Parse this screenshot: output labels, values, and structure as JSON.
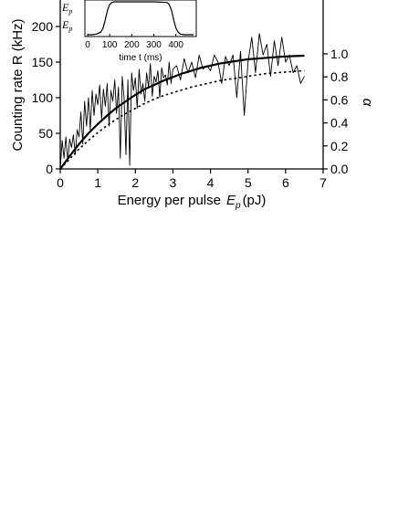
{
  "chart_data": [
    {
      "type": "line",
      "xlabel": "Energy per pulse",
      "xlabel_symbol": "E",
      "xlabel_subscript": "p",
      "xlabel_unit": "(pJ)",
      "ylabel_left": "Counting rate R (kHz)",
      "ylabel_right": "α",
      "xlim": [
        0,
        7
      ],
      "ylim_left": [
        0,
        260
      ],
      "ylim_right": [
        0,
        1.65
      ],
      "x_ticks": [
        0,
        1,
        2,
        3,
        4,
        5,
        6,
        7
      ],
      "y_left_ticks": [
        0,
        50,
        100,
        150,
        200
      ],
      "y_right_ticks": [
        "0.0",
        "0.2",
        "0.4",
        "0.6",
        "0.8",
        "1.0"
      ],
      "series": [
        {
          "style": "thin-solid",
          "axis": "left",
          "x": [
            0.0,
            0.05,
            0.1,
            0.15,
            0.2,
            0.25,
            0.3,
            0.35,
            0.4,
            0.45,
            0.5,
            0.55,
            0.6,
            0.65,
            0.7,
            0.75,
            0.8,
            0.85,
            0.9,
            0.95,
            1.0,
            1.05,
            1.1,
            1.15,
            1.2,
            1.25,
            1.3,
            1.35,
            1.4,
            1.45,
            1.5,
            1.55,
            1.6,
            1.65,
            1.7,
            1.75,
            1.8,
            1.85,
            1.9,
            1.95,
            2.0,
            2.05,
            2.1,
            2.15,
            2.2,
            2.25,
            2.3,
            2.35,
            2.4,
            2.45,
            2.5,
            2.55,
            2.6,
            2.65,
            2.7,
            2.75,
            2.8,
            2.85,
            2.9,
            2.95,
            3.0,
            3.1,
            3.2,
            3.3,
            3.4,
            3.5,
            3.6,
            3.7,
            3.8,
            3.9,
            4.0,
            4.1,
            4.2,
            4.3,
            4.4,
            4.5,
            4.6,
            4.7,
            4.8,
            4.9,
            5.0,
            5.1,
            5.2,
            5.3,
            5.4,
            5.5,
            5.6,
            5.7,
            5.8,
            5.9,
            6.0,
            6.1,
            6.2,
            6.3,
            6.4,
            6.5
          ],
          "y": [
            0,
            40,
            15,
            45,
            10,
            42,
            30,
            48,
            20,
            55,
            45,
            80,
            35,
            95,
            60,
            100,
            55,
            110,
            75,
            105,
            90,
            118,
            70,
            112,
            88,
            120,
            60,
            110,
            95,
            125,
            78,
            115,
            15,
            130,
            100,
            20,
            125,
            5,
            135,
            110,
            128,
            85,
            140,
            105,
            120,
            95,
            135,
            115,
            148,
            102,
            130,
            122,
            138,
            100,
            142,
            128,
            132,
            118,
            150,
            120,
            140,
            145,
            125,
            155,
            135,
            150,
            128,
            160,
            140,
            145,
            138,
            160,
            150,
            120,
            158,
            145,
            160,
            100,
            165,
            75,
            150,
            185,
            135,
            190,
            160,
            175,
            130,
            180,
            145,
            185,
            150,
            160,
            135,
            145,
            120,
            130
          ],
          "color": "#000000"
        },
        {
          "style": "thick-solid",
          "axis": "left",
          "x": [
            0,
            0.25,
            0.5,
            0.75,
            1.0,
            1.25,
            1.5,
            1.75,
            2.0,
            2.25,
            2.5,
            2.75,
            3.0,
            3.25,
            3.5,
            3.75,
            4.0,
            4.25,
            4.5,
            4.75,
            5.0,
            5.25,
            5.5,
            5.75,
            6.0,
            6.25,
            6.5
          ],
          "y": [
            0,
            18,
            35,
            50,
            63,
            75,
            86,
            95,
            104,
            112,
            118,
            124,
            129,
            134,
            138,
            142,
            145,
            148,
            150,
            152,
            154,
            155,
            156,
            157,
            158,
            158.5,
            159
          ],
          "color": "#000000"
        },
        {
          "style": "dotted",
          "axis": "left",
          "x": [
            0,
            0.25,
            0.5,
            0.75,
            1.0,
            1.25,
            1.5,
            1.75,
            2.0,
            2.25,
            2.5,
            2.75,
            3.0,
            3.25,
            3.5,
            3.75,
            4.0,
            4.25,
            4.5,
            4.75,
            5.0,
            5.25,
            5.5,
            5.75,
            6.0,
            6.25,
            6.5
          ],
          "y": [
            0,
            14,
            28,
            40,
            51,
            61,
            70,
            78,
            85,
            92,
            98,
            103,
            107,
            111,
            115,
            118,
            121,
            124,
            126,
            128,
            130,
            132,
            134,
            135,
            136,
            137,
            138
          ],
          "color": "#000000"
        }
      ]
    },
    {
      "type": "line",
      "role": "inset",
      "xlabel": "time t (ms)",
      "ylabel_lines": [
        "E",
        "E"
      ],
      "ylabel_subscript": "p",
      "xlim": [
        0,
        480
      ],
      "ylim": [
        0,
        1
      ],
      "x_ticks": [
        0,
        100,
        200,
        300,
        400
      ],
      "series": [
        {
          "style": "thin-solid",
          "x": [
            0,
            20,
            40,
            60,
            70,
            80,
            90,
            100,
            110,
            120,
            200,
            300,
            360,
            370,
            380,
            390,
            400,
            410,
            420,
            440,
            460,
            480
          ],
          "y": [
            0,
            0,
            0.02,
            0.08,
            0.2,
            0.45,
            0.75,
            0.92,
            0.98,
            1.0,
            1.0,
            1.0,
            0.98,
            0.92,
            0.75,
            0.45,
            0.2,
            0.08,
            0.02,
            0,
            0,
            0
          ],
          "color": "#000000"
        }
      ]
    }
  ]
}
